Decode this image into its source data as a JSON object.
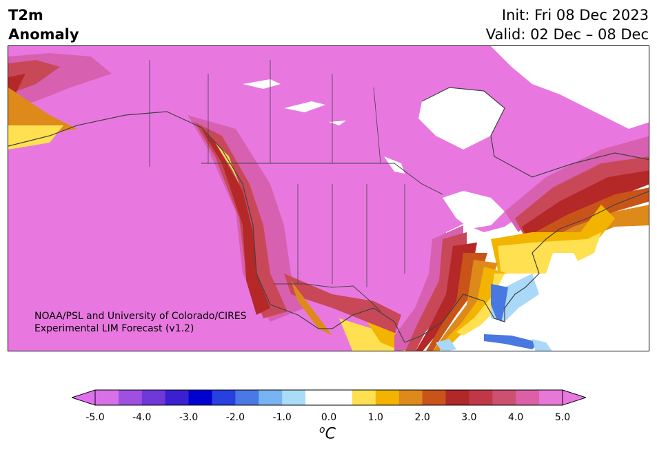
{
  "header": {
    "variable": "T2m",
    "field": "Anomaly",
    "init": "Init: Fri 08 Dec 2023",
    "valid": "Valid: 02 Dec – 08 Dec"
  },
  "map": {
    "credit_line1": "NOAA/PSL and University of Colorado/CIRES",
    "credit_line2": "Experimental LIM Forecast (v1.2)",
    "region": "North America",
    "colors": {
      "max_warm": "#e878e0",
      "warm_4_5": "#d860b0",
      "warm_3_5": "#c84858",
      "warm_3": "#b42828",
      "warm_2_5": "#c8541a",
      "warm_2": "#de8a1a",
      "warm_1_5": "#f2b400",
      "warm_1": "#ffe050",
      "neutral": "#ffffff",
      "cool_1": "#aad8f8",
      "cool_1_5": "#7ab4f2",
      "cool_2": "#4878e0",
      "coastline": "#404040"
    }
  },
  "colorbar": {
    "unit_base": "C",
    "unit_sup": "o",
    "ticks": [
      "-5.0",
      "-4.0",
      "-3.0",
      "-2.0",
      "-1.0",
      "0.0",
      "1.0",
      "2.0",
      "3.0",
      "4.0",
      "5.0"
    ],
    "colors": [
      "#d870e8",
      "#a050e0",
      "#7038d8",
      "#3a20d0",
      "#0000d0",
      "#2840e0",
      "#4a78e4",
      "#78b4f2",
      "#aadcf8",
      "#ffffff",
      "#ffffff",
      "#ffe050",
      "#f2b400",
      "#de8a1a",
      "#c8541a",
      "#b02828",
      "#c03848",
      "#cc5070",
      "#dc60a8",
      "#e878d8"
    ]
  }
}
